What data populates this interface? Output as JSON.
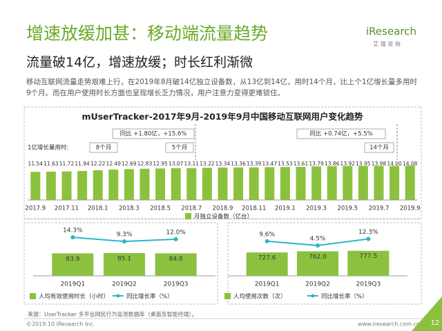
{
  "header": {
    "title": "增速放缓加甚：移动端流量趋势",
    "subtitle": "流量破14亿，增速放缓；时长红利渐微",
    "body": [
      "移动互联网流量走势艰难上行，在2019年8月破14亿独立设备数，从13亿到14亿，用时14个月，比上个1亿增长量多用时",
      "9个月。而在用户使用时长方面也呈现增长乏力情况，用户注意力变得更难锁住。"
    ],
    "logo": "iResearch",
    "logo_cn": "艾 瑞 咨 询"
  },
  "chart_data": [
    {
      "type": "bar",
      "title": "mUserTracker-2017年9月-2019年9月中国移动互联网用户变化趋势",
      "categories": [
        "2017.9",
        null,
        "2017.11",
        null,
        "2018.1",
        null,
        "2018.3",
        null,
        "2018.5",
        null,
        "2018.7",
        null,
        "2018.9",
        null,
        "2018.11",
        null,
        "2019.1",
        null,
        "2019.3",
        null,
        "2019.5",
        null,
        "2019.7",
        null,
        "2019.9"
      ],
      "series": [
        {
          "name": "月独立设备数（亿台）",
          "color": "#8cc13f",
          "values": [
            11.54,
            11.63,
            11.72,
            11.94,
            12.22,
            12.49,
            12.69,
            12.83,
            12.95,
            13.07,
            13.11,
            13.22,
            13.34,
            13.36,
            13.39,
            13.47,
            13.53,
            13.61,
            13.79,
            13.86,
            13.92,
            13.95,
            13.98,
            14.0,
            14.08
          ],
          "value_labels": [
            "11.54",
            "11.63",
            "11.72",
            "11.94",
            "12.22",
            "12.49",
            "12.69",
            "12.83",
            "12.95",
            "13.07",
            "13.11",
            "13.22",
            "13.34",
            "13.36",
            "13.39",
            "13.47",
            "13.53",
            "13.61",
            "13.79",
            "13.86",
            "13.92",
            "13.95",
            "13.98",
            "14.00",
            "14.08"
          ]
        }
      ],
      "ylim": [
        0,
        17
      ],
      "annotations": [
        "1亿增长量用时:",
        "8个月",
        "5个月",
        "14个月",
        "同比 +1.80亿，+15.6%",
        "同比 +0.74亿，+5.5%"
      ]
    },
    {
      "type": "combo",
      "categories": [
        "2019Q1",
        "2019Q2",
        "2019Q3"
      ],
      "series": [
        {
          "name": "人均有效使用时长（小时）",
          "color": "#8cc13f",
          "values": [
            83.9,
            85.1,
            84.0
          ],
          "value_labels": [
            "83.9",
            "85.1",
            "84.0"
          ]
        },
        {
          "name": "同比增长率（%）",
          "color": "#2cb5c5",
          "axis": "y2",
          "values": [
            14.3,
            9.3,
            12.0
          ],
          "value_labels": [
            "14.3%",
            "9.3%",
            "12.0%"
          ]
        }
      ],
      "ylim": [
        0,
        180
      ],
      "y2lim": [
        -32,
        26
      ]
    },
    {
      "type": "combo",
      "categories": [
        "2019Q1",
        "2019Q2",
        "2019Q3"
      ],
      "series": [
        {
          "name": "人均使用次数（次）",
          "color": "#8cc13f",
          "values": [
            727.6,
            762.0,
            777.5
          ],
          "value_labels": [
            "727.6",
            "762.0",
            "777.5"
          ]
        },
        {
          "name": "同比增长率（%）",
          "color": "#2cb5c5",
          "axis": "y2",
          "values": [
            9.6,
            4.5,
            12.3
          ],
          "value_labels": [
            "9.6%",
            "4.5%",
            "12.3%"
          ]
        }
      ],
      "ylim": [
        0,
        1500
      ],
      "y2lim": [
        -32,
        26
      ]
    }
  ],
  "footer": {
    "source": "来源：UserTracker 多平台网民行为监测数据库（桌面及智能终端）。",
    "copyright": "©2019.10 iResearch Inc.",
    "url": "www.iresearch.com.cn",
    "page": "12"
  }
}
